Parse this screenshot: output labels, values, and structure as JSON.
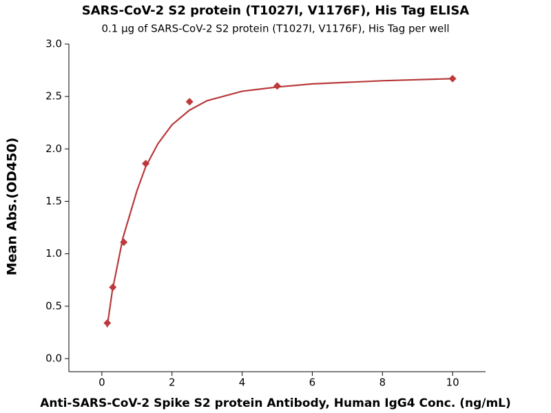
{
  "chart_data": {
    "type": "scatter",
    "title": "SARS-CoV-2 S2 protein (T1027I, V1176F), His Tag ELISA",
    "subtitle": "0.1 μg of SARS-CoV-2 S2 protein (T1027I, V1176F), His Tag per well",
    "x_label": "Anti-SARS-CoV-2 Spike S2 protein Antibody, Human IgG4 Conc. (ng/mL)",
    "y_label": "Mean Abs.(OD450)",
    "xlim": [
      -0.94,
      10.94
    ],
    "xticks": [
      0,
      2,
      4,
      6,
      8,
      10
    ],
    "ylim": [
      0,
      3
    ],
    "yticks": [
      {
        "value": 0,
        "label": "0.0"
      },
      {
        "value": 0.5,
        "label": "0.5"
      },
      {
        "value": 1,
        "label": "1.0"
      },
      {
        "value": 1.5,
        "label": "1.5"
      },
      {
        "value": 2,
        "label": "2.0"
      },
      {
        "value": 2.5,
        "label": "2.5"
      },
      {
        "value": 3,
        "label": "3.0"
      }
    ],
    "series": [
      {
        "style": "markers",
        "color": "#c0393b",
        "x": [
          0.156,
          0.3125,
          0.625,
          1.25,
          2.5,
          5,
          10
        ],
        "values": [
          0.34,
          0.68,
          1.11,
          1.86,
          2.45,
          2.6,
          2.67
        ]
      },
      {
        "style": "line",
        "color": "#b8383a",
        "x": [
          0.15,
          0.3,
          0.6,
          1.0,
          1.25,
          1.6,
          2.0,
          2.5,
          3.0,
          4.0,
          5.0,
          6.0,
          8.0,
          10.0
        ],
        "values": [
          0.3,
          0.65,
          1.15,
          1.6,
          1.83,
          2.05,
          2.23,
          2.37,
          2.46,
          2.55,
          2.59,
          2.62,
          2.65,
          2.67
        ]
      }
    ]
  }
}
